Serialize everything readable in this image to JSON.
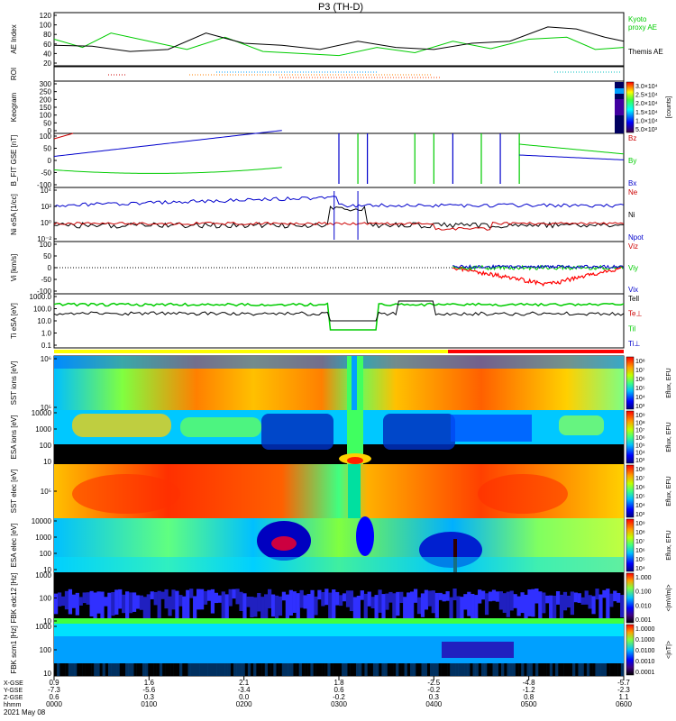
{
  "title": "P3 (TH-D)",
  "chart_data": {
    "type": "heatmap",
    "date_label": "2021 May 08",
    "time_ticks": [
      "0000",
      "0100",
      "0200",
      "0300",
      "0400",
      "0500",
      "0600"
    ],
    "time_hours": [
      0,
      1,
      2,
      3,
      4,
      5,
      6
    ],
    "ephemeris": {
      "labels": [
        "X-GSE",
        "Y-GSE",
        "Z-GSE",
        "hhmm"
      ],
      "rows": [
        [
          "0.9",
          "1.6",
          "2.1",
          "1.8",
          "-2.5",
          "-4.8",
          "-5.7"
        ],
        [
          "-7.3",
          "-5.6",
          "-3.4",
          "0.6",
          "-0.2",
          "-1.2",
          "-2.3"
        ],
        [
          "0.6",
          "0.3",
          "0.0",
          "-0.2",
          "0.3",
          "0.8",
          "1.1"
        ]
      ]
    },
    "panels": [
      {
        "id": "ae",
        "ylabel": "AE Index",
        "yticks": [
          "120",
          "100",
          "80",
          "60",
          "40",
          "20"
        ],
        "legend": [
          {
            "name": "Kyoto",
            "color": "#00cc00"
          },
          {
            "name": "proxy AE",
            "color": "#00cc00"
          },
          {
            "name": "Themis AE",
            "color": "#000000"
          }
        ],
        "series": [
          {
            "name": "Kyoto proxy AE",
            "color": "#00cc00",
            "t": [
              0,
              0.3,
              0.6,
              1.0,
              1.4,
              1.8,
              2.2,
              2.6,
              3.0,
              3.4,
              3.8,
              4.2,
              4.6,
              5.0,
              5.4,
              5.7,
              6.0
            ],
            "y": [
              65,
              45,
              80,
              60,
              40,
              70,
              35,
              30,
              25,
              45,
              32,
              60,
              42,
              65,
              70,
              40,
              45
            ]
          },
          {
            "name": "Themis AE",
            "color": "#000000",
            "t": [
              0,
              0.4,
              0.8,
              1.2,
              1.6,
              2.0,
              2.4,
              2.8,
              3.2,
              3.6,
              4.0,
              4.4,
              4.8,
              5.2,
              5.5,
              5.8,
              6.0
            ],
            "y": [
              50,
              48,
              35,
              40,
              80,
              55,
              50,
              40,
              60,
              45,
              40,
              55,
              60,
              95,
              90,
              70,
              60
            ]
          }
        ]
      },
      {
        "id": "roi",
        "ylabel": "ROI",
        "yticks": []
      },
      {
        "id": "keogram",
        "ylabel": "Keogram",
        "yticks": [
          "300",
          "250",
          "200",
          "150",
          "100",
          "50",
          "0"
        ],
        "colorbar": {
          "label": "[counts]",
          "ticks": [
            "3.0×10⁴",
            "2.5×10⁴",
            "2.0×10⁴",
            "1.5×10⁴",
            "1.0×10⁴",
            "5.0×10³"
          ]
        }
      },
      {
        "id": "bfit",
        "ylabel": "B_FIT GSE [nT]",
        "yticks": [
          "100",
          "50",
          "0",
          "-50",
          "-100"
        ],
        "legend": [
          {
            "name": "Bz",
            "color": "#cc0000"
          },
          {
            "name": "By",
            "color": "#00cc00"
          },
          {
            "name": "Bx",
            "color": "#0000cc"
          }
        ]
      },
      {
        "id": "ni",
        "ylabel": "Ni eSA [1/cc]",
        "yticks": [
          "10⁴",
          "10²",
          "10⁰",
          "10⁻²"
        ],
        "legend": [
          {
            "name": "Ne",
            "color": "#cc0000"
          },
          {
            "name": "Ni",
            "color": "#000000"
          },
          {
            "name": "Npot",
            "color": "#0000cc"
          }
        ]
      },
      {
        "id": "vi",
        "ylabel": "Vi [km/s]",
        "yticks": [
          "100",
          "50",
          "0",
          "-50",
          "-100"
        ],
        "legend": [
          {
            "name": "Viz",
            "color": "#cc0000"
          },
          {
            "name": "Viy",
            "color": "#00cc00"
          },
          {
            "name": "Vix",
            "color": "#0000cc"
          }
        ]
      },
      {
        "id": "ti",
        "ylabel": "Ti eSA [eV]",
        "yticks": [
          "1000.0",
          "100.0",
          "10.0",
          "1.0",
          "0.1"
        ],
        "legend": [
          {
            "name": "Tell",
            "color": "#000000"
          },
          {
            "name": "Te⊥",
            "color": "#cc0000"
          },
          {
            "name": "Til",
            "color": "#00cc00"
          },
          {
            "name": "Ti⊥",
            "color": "#0000cc"
          }
        ]
      },
      {
        "id": "sst_i",
        "ylabel": "SST ions [eV]",
        "yticks": [
          "10⁶",
          "10⁵"
        ],
        "colorbar": {
          "label": "Eflux, EFU",
          "ticks": [
            "10⁸",
            "10⁷",
            "10⁶",
            "10⁵",
            "10⁴",
            "10³"
          ]
        }
      },
      {
        "id": "esa_i",
        "ylabel": "ESA ions [eV]",
        "yticks": [
          "10000",
          "1000",
          "100",
          "10"
        ],
        "colorbar": {
          "label": "Eflux, EFU",
          "ticks": [
            "10⁹",
            "10⁸",
            "10⁷",
            "10⁶",
            "10⁵",
            "10⁴",
            "10³"
          ]
        }
      },
      {
        "id": "sst_e",
        "ylabel": "SST elec [eV]",
        "yticks": [
          "10⁵"
        ],
        "colorbar": {
          "label": "Eflux, EFU",
          "ticks": [
            "10⁸",
            "10⁷",
            "10⁶",
            "10⁵",
            "10⁴",
            "10³"
          ]
        }
      },
      {
        "id": "esa_e",
        "ylabel": "ESA elec [eV]",
        "yticks": [
          "10000",
          "1000",
          "100",
          "10"
        ],
        "colorbar": {
          "label": "Eflux, EFU",
          "ticks": [
            "10⁹",
            "10⁸",
            "10⁷",
            "10⁶",
            "10⁵",
            "10⁴"
          ]
        }
      },
      {
        "id": "fbk_e",
        "ylabel": "FBK edc12 [Hz]",
        "yticks": [
          "1000",
          "100",
          "10"
        ],
        "colorbar": {
          "label": "<|mV/m|>",
          "ticks": [
            "1.000",
            "0.100",
            "0.010",
            "0.001"
          ]
        }
      },
      {
        "id": "fbk_b",
        "ylabel": "FBK scm1 [Hz]",
        "yticks": [
          "1000",
          "100",
          "10"
        ],
        "colorbar": {
          "label": "<|nT|>",
          "ticks": [
            "1.0000",
            "0.1000",
            "0.0100",
            "0.0010",
            "0.0001"
          ]
        }
      }
    ]
  }
}
